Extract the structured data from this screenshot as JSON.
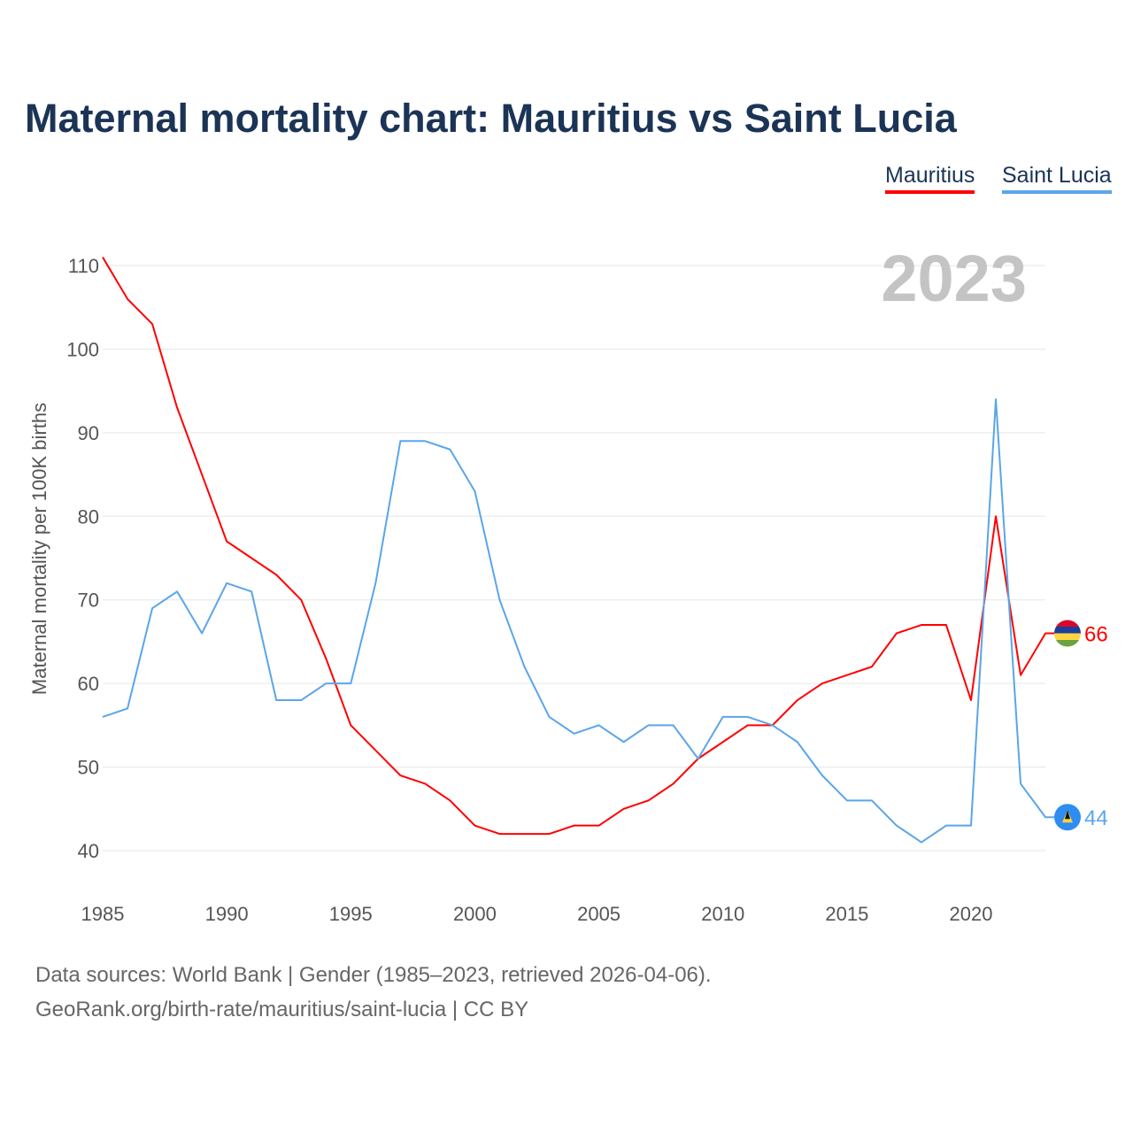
{
  "title": "Maternal mortality chart: Mauritius vs Saint Lucia",
  "footer": {
    "line1": "Data sources: World Bank | Gender (1985–2023, retrieved 2026-04-06).",
    "line2": "GeoRank.org/birth-rate/mauritius/saint-lucia | CC BY"
  },
  "chart_data": {
    "type": "line",
    "title": "Maternal mortality chart: Mauritius vs Saint Lucia",
    "ylabel": "Maternal mortality per 100K births",
    "xlabel": "",
    "year_label": "2023",
    "xlim": [
      1985,
      2023
    ],
    "ylim": [
      40,
      110
    ],
    "xticks": [
      1985,
      1990,
      1995,
      2000,
      2005,
      2010,
      2015,
      2020
    ],
    "yticks": [
      40,
      50,
      60,
      70,
      80,
      90,
      100,
      110
    ],
    "grid": true,
    "legend_position": "top-right",
    "x": [
      1985,
      1986,
      1987,
      1988,
      1989,
      1990,
      1991,
      1992,
      1993,
      1994,
      1995,
      1996,
      1997,
      1998,
      1999,
      2000,
      2001,
      2002,
      2003,
      2004,
      2005,
      2006,
      2007,
      2008,
      2009,
      2010,
      2011,
      2012,
      2013,
      2014,
      2015,
      2016,
      2017,
      2018,
      2019,
      2020,
      2021,
      2022,
      2023
    ],
    "series": [
      {
        "name": "Mauritius",
        "color": "#ff0000",
        "end_label": "66",
        "values": [
          111,
          106,
          103,
          93,
          85,
          77,
          75,
          73,
          70,
          63,
          55,
          52,
          49,
          48,
          46,
          43,
          42,
          42,
          42,
          43,
          43,
          45,
          46,
          48,
          51,
          53,
          55,
          55,
          58,
          60,
          61,
          62,
          66,
          67,
          67,
          58,
          80,
          61,
          66
        ]
      },
      {
        "name": "Saint Lucia",
        "color": "#5aa5ea",
        "end_label": "44",
        "values": [
          56,
          57,
          69,
          71,
          66,
          72,
          71,
          58,
          58,
          60,
          60,
          72,
          89,
          89,
          88,
          83,
          70,
          62,
          56,
          54,
          55,
          53,
          55,
          55,
          51,
          56,
          56,
          55,
          53,
          49,
          46,
          46,
          43,
          41,
          43,
          43,
          94,
          48,
          44
        ]
      }
    ]
  }
}
